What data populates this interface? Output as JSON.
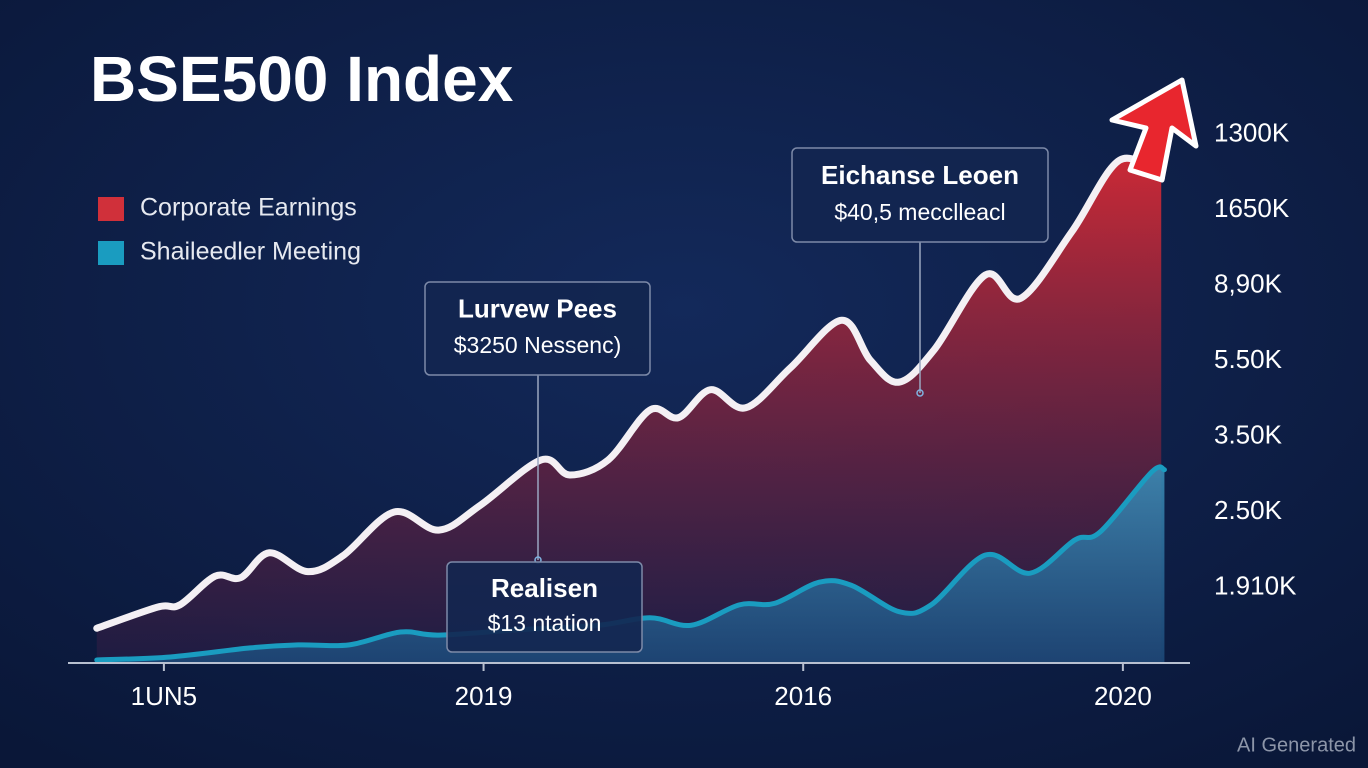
{
  "chart_data": {
    "type": "area",
    "title": "BSE500 Index",
    "series": [
      {
        "name": "Corporate Earnings",
        "color": "#d0303a",
        "x": [
          -0.21,
          -0.02,
          0.05,
          0.16,
          0.24,
          0.33,
          0.45,
          0.56,
          0.72,
          0.86,
          0.99,
          1.18,
          1.27,
          1.39,
          1.52,
          1.61,
          1.71,
          1.82,
          1.96,
          2.12,
          2.21,
          2.3,
          2.41,
          2.57,
          2.68,
          2.84,
          2.99,
          3.12
        ],
        "values": [
          0.46,
          0.74,
          0.77,
          1.15,
          1.13,
          1.46,
          1.21,
          1.42,
          2.0,
          1.76,
          2.09,
          2.69,
          2.49,
          2.69,
          3.35,
          3.25,
          3.62,
          3.38,
          3.91,
          4.54,
          4.01,
          3.72,
          4.15,
          5.14,
          4.83,
          5.71,
          6.66,
          6.42
        ]
      },
      {
        "name": "Shaileedler Meeting",
        "color": "#1a9cc0",
        "x": [
          -0.21,
          0.02,
          0.27,
          0.42,
          0.58,
          0.74,
          0.86,
          1.11,
          1.36,
          1.52,
          1.65,
          1.8,
          1.91,
          2.05,
          2.15,
          2.3,
          2.4,
          2.57,
          2.71,
          2.85,
          2.93,
          3.09,
          3.13
        ],
        "values": [
          0.04,
          0.08,
          0.2,
          0.24,
          0.24,
          0.41,
          0.37,
          0.44,
          0.5,
          0.6,
          0.5,
          0.77,
          0.79,
          1.07,
          1.03,
          0.68,
          0.77,
          1.43,
          1.19,
          1.63,
          1.74,
          2.53,
          2.56
        ]
      }
    ],
    "xlim": [
      -0.3,
      3.21
    ],
    "xticks": [
      {
        "value": 0,
        "label": "1UN5"
      },
      {
        "value": 1,
        "label": "2019"
      },
      {
        "value": 2,
        "label": "2016"
      },
      {
        "value": 3,
        "label": "2020"
      }
    ],
    "ylim": [
      0,
      8
    ],
    "yticks": [
      {
        "value": 1,
        "label": "1.910K"
      },
      {
        "value": 2,
        "label": "2.50K"
      },
      {
        "value": 3,
        "label": "3.50K"
      },
      {
        "value": 4,
        "label": "5.50K"
      },
      {
        "value": 5,
        "label": "8,90K"
      },
      {
        "value": 6,
        "label": "1650K"
      },
      {
        "value": 7,
        "label": "1300K"
      }
    ],
    "grid": false,
    "legend": "upper left",
    "annotations": [
      {
        "title": "Lurvew Pees",
        "text": "$3250 Nessenc)"
      },
      {
        "title": "Eichanse Leoen",
        "text": "$40,5 mecclleacl"
      },
      {
        "title": "Realisen",
        "text": "$13 ntation"
      }
    ],
    "watermark": "AI Generated"
  }
}
